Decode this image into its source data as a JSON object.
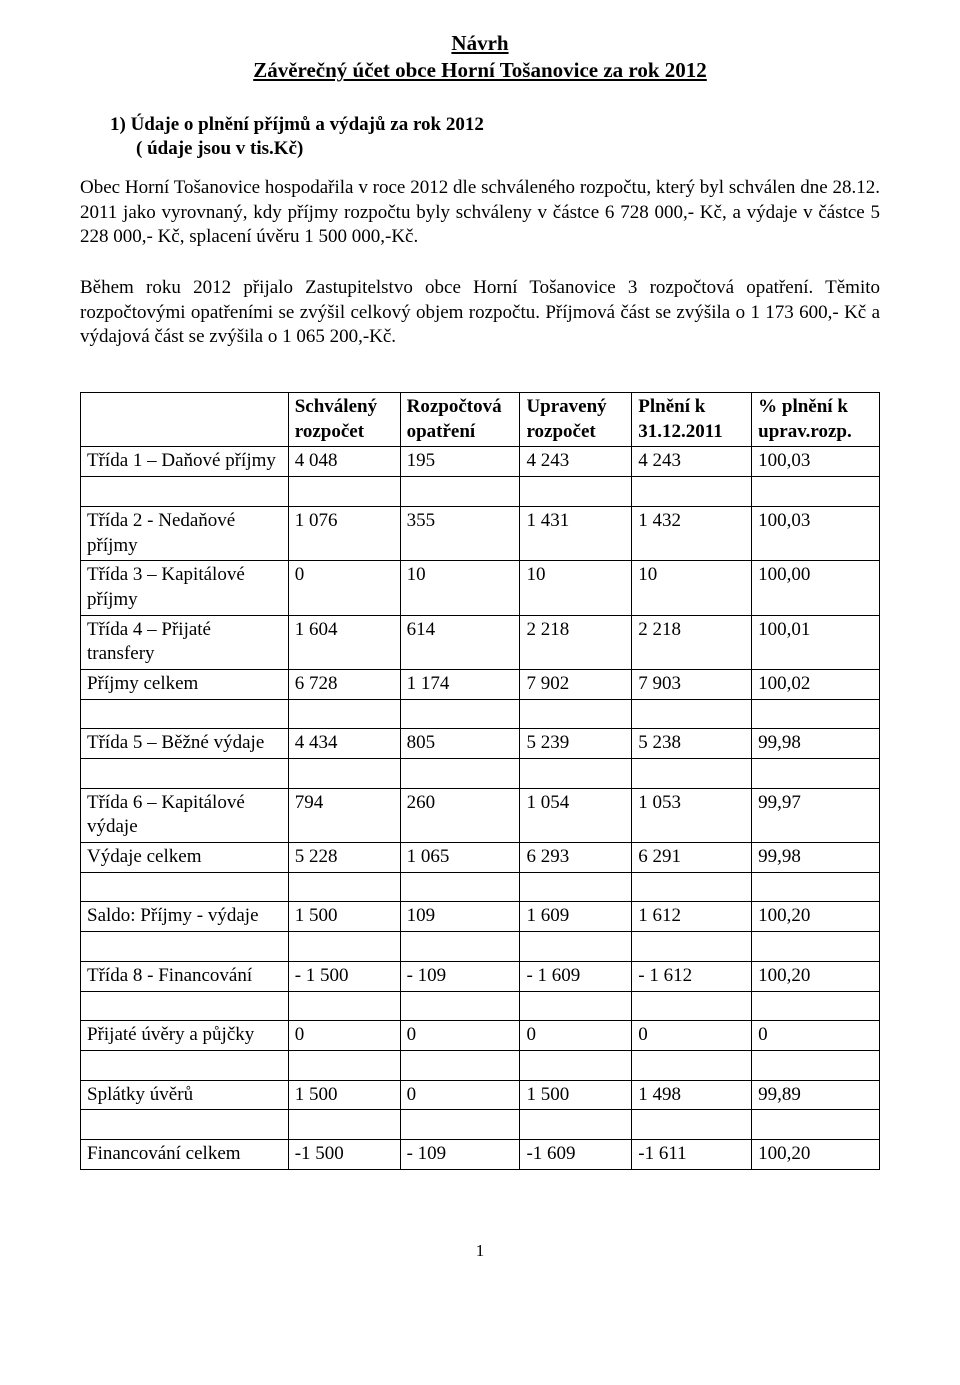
{
  "header": {
    "line1": "Návrh",
    "line2": "Závěrečný účet obce Horní Tošanovice  za rok 2012"
  },
  "section1": {
    "heading": "1)  Údaje o plnění příjmů a výdajů za rok 2012",
    "subheading": "( údaje jsou v tis.Kč)"
  },
  "para1": "Obec Horní Tošanovice hospodařila v roce 2012 dle schváleného rozpočtu, který byl schválen dne 28.12. 2011 jako vyrovnaný, kdy příjmy rozpočtu byly schváleny v částce 6 728 000,- Kč, a výdaje v částce 5 228 000,- Kč, splacení úvěru 1 500 000,-Kč.",
  "para2": "Během roku 2012 přijalo Zastupitelstvo obce Horní Tošanovice 3 rozpočtová opatření. Těmito rozpočtovými opatřeními se zvýšil celkový objem rozpočtu. Příjmová část se zvýšila o 1 173 600,- Kč a výdajová část se zvýšila o 1 065 200,-Kč.",
  "table": {
    "columns": [
      "",
      "Schválený rozpočet",
      "Rozpočtová opatření",
      "Upravený rozpočet",
      "Plnění k 31.12.2011",
      "% plnění k uprav.rozp."
    ],
    "rows": [
      [
        "Třída 1 – Daňové příjmy",
        "4 048",
        "195",
        "4 243",
        "4 243",
        "100,03"
      ],
      [
        "SPACER"
      ],
      [
        "Třída 2 -  Nedaňové příjmy",
        "1 076",
        "355",
        "1 431",
        "1 432",
        "100,03"
      ],
      [
        "Třída 3 – Kapitálové příjmy",
        "0",
        "10",
        "10",
        "10",
        "100,00"
      ],
      [
        "Třída  4 – Přijaté transfery",
        "1 604",
        "614",
        "2 218",
        "2 218",
        "100,01"
      ],
      [
        "Příjmy celkem",
        "6 728",
        "1 174",
        "7 902",
        "7 903",
        "100,02"
      ],
      [
        "SPACER"
      ],
      [
        "Třída 5 – Běžné výdaje",
        "4 434",
        "805",
        "5 239",
        "5 238",
        "99,98"
      ],
      [
        "SPACER"
      ],
      [
        "Třída 6 – Kapitálové výdaje",
        "794",
        "260",
        "1 054",
        "1 053",
        "99,97"
      ],
      [
        "Výdaje celkem",
        "5 228",
        "1 065",
        "6 293",
        "6 291",
        "99,98"
      ],
      [
        "SPACER"
      ],
      [
        "Saldo: Příjmy - výdaje",
        "1 500",
        "109",
        "1 609",
        "1 612",
        "100,20"
      ],
      [
        "SPACER"
      ],
      [
        "Třída 8 - Financování",
        "- 1 500",
        "- 109",
        "- 1 609",
        "- 1 612",
        "100,20"
      ],
      [
        "SPACER"
      ],
      [
        "Přijaté úvěry a půjčky",
        "0",
        "0",
        "0",
        "0",
        "0"
      ],
      [
        "SPACER"
      ],
      [
        "Splátky úvěrů",
        "1 500",
        "0",
        "1 500",
        "1 498",
        "99,89"
      ],
      [
        "SPACER"
      ],
      [
        "Financování celkem",
        "-1 500",
        "- 109",
        "-1 609",
        "-1 611",
        "100,20"
      ]
    ]
  },
  "page_number": "1"
}
